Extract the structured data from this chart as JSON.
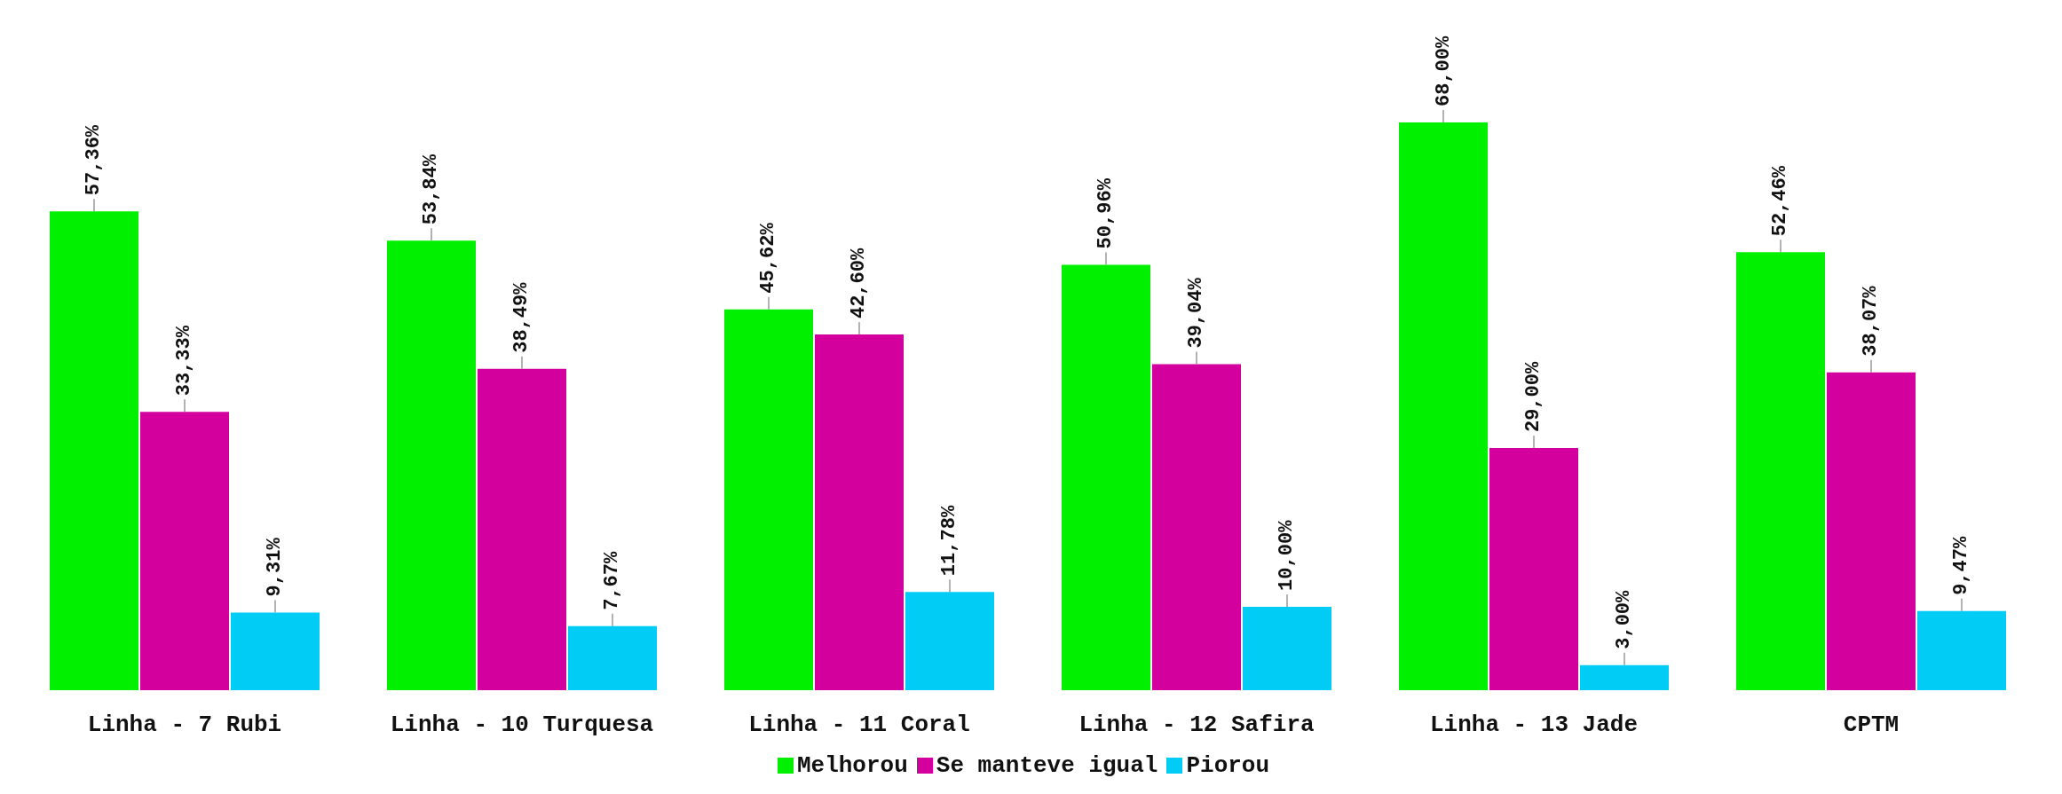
{
  "chart_data": {
    "type": "bar",
    "categories": [
      "Linha - 7 Rubi",
      "Linha - 10 Turquesa",
      "Linha - 11 Coral",
      "Linha - 12 Safira",
      "Linha - 13 Jade",
      "CPTM"
    ],
    "series": [
      {
        "name": "Melhorou",
        "color": "#00f000",
        "values": [
          57.36,
          53.84,
          45.62,
          50.96,
          68.0,
          52.46
        ],
        "value_labels": [
          "57,36%",
          "53,84%",
          "45,62%",
          "50,96%",
          "68,00%",
          "52,46%"
        ]
      },
      {
        "name": "Se manteve igual",
        "color": "#d4009e",
        "values": [
          33.33,
          38.49,
          42.6,
          39.04,
          29.0,
          38.07
        ],
        "value_labels": [
          "33,33%",
          "38,49%",
          "42,60%",
          "39,04%",
          "29,00%",
          "38,07%"
        ]
      },
      {
        "name": "Piorou",
        "color": "#00ccf5",
        "values": [
          9.31,
          7.67,
          11.78,
          10.0,
          3.0,
          9.47
        ],
        "value_labels": [
          "9,31%",
          "7,67%",
          "11,78%",
          "10,00%",
          "3,00%",
          "9,47%"
        ]
      }
    ],
    "legend": "bottom",
    "grid": false
  }
}
